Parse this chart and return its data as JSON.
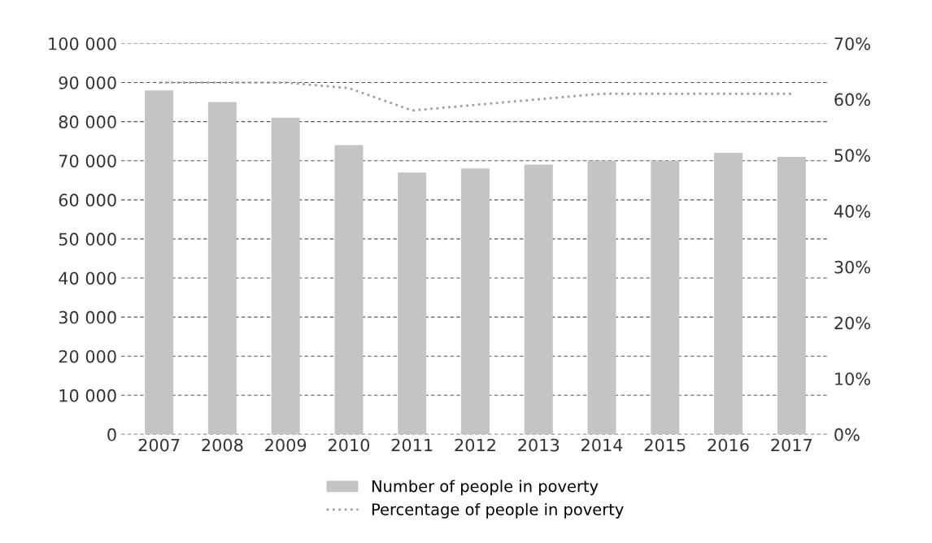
{
  "chart_data": {
    "type": "bar",
    "categories": [
      "2007",
      "2008",
      "2009",
      "2010",
      "2011",
      "2012",
      "2013",
      "2014",
      "2015",
      "2016",
      "2017"
    ],
    "series": [
      {
        "name": "Number of people in poverty",
        "color": "#c4c4c4",
        "values": [
          88000,
          85000,
          81000,
          74000,
          67000,
          68000,
          69000,
          70000,
          70000,
          72000,
          71000
        ]
      },
      {
        "name": "Percentage of people in poverty",
        "type": "line",
        "axis": "y2",
        "color": "#a0a0a0",
        "line_style": "dotted",
        "values": [
          63,
          63,
          63,
          62,
          58,
          59,
          60,
          61,
          61,
          61,
          61
        ]
      }
    ],
    "ylim": [
      0,
      100000
    ],
    "yticks": [
      {
        "value": 0,
        "label": "0"
      },
      {
        "value": 10000,
        "label": "10 000"
      },
      {
        "value": 20000,
        "label": "20 000"
      },
      {
        "value": 30000,
        "label": "30 000"
      },
      {
        "value": 40000,
        "label": "40 000"
      },
      {
        "value": 50000,
        "label": "50 000"
      },
      {
        "value": 60000,
        "label": "60 000"
      },
      {
        "value": 70000,
        "label": "70 000"
      },
      {
        "value": 80000,
        "label": "80 000"
      },
      {
        "value": 90000,
        "label": "90 000"
      },
      {
        "value": 100000,
        "label": "100 000"
      }
    ],
    "y2lim": [
      0,
      70
    ],
    "y2ticks": [
      {
        "value": 0,
        "label": "0%"
      },
      {
        "value": 10,
        "label": "10%"
      },
      {
        "value": 20,
        "label": "20%"
      },
      {
        "value": 30,
        "label": "30%"
      },
      {
        "value": 40,
        "label": "40%"
      },
      {
        "value": 50,
        "label": "50%"
      },
      {
        "value": 60,
        "label": "60%"
      },
      {
        "value": 70,
        "label": "70%"
      }
    ],
    "grid": "y",
    "legend": "bottom"
  }
}
